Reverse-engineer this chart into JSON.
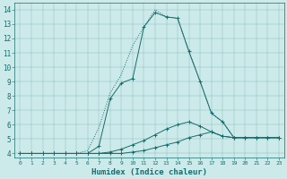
{
  "xlabel": "Humidex (Indice chaleur)",
  "ylabel": "",
  "bg_color": "#cceaea",
  "line_color": "#1a6b6b",
  "xlim": [
    -0.5,
    23.5
  ],
  "ylim": [
    3.7,
    14.5
  ],
  "xticks": [
    0,
    1,
    2,
    3,
    4,
    5,
    6,
    7,
    8,
    9,
    10,
    11,
    12,
    13,
    14,
    15,
    16,
    17,
    18,
    19,
    20,
    21,
    22,
    23
  ],
  "yticks": [
    4,
    5,
    6,
    7,
    8,
    9,
    10,
    11,
    12,
    13,
    14
  ],
  "lines": [
    {
      "x": [
        0,
        1,
        2,
        3,
        4,
        5,
        6,
        7,
        8,
        9,
        10,
        11,
        12,
        13,
        14,
        15,
        16,
        17,
        18,
        19,
        20,
        21,
        22,
        23
      ],
      "y": [
        4.0,
        4.0,
        4.0,
        4.0,
        4.0,
        4.0,
        4.0,
        4.0,
        4.0,
        4.0,
        4.1,
        4.2,
        4.4,
        4.6,
        4.8,
        5.1,
        5.3,
        5.5,
        5.2,
        5.1,
        5.1,
        5.1,
        5.1,
        5.1
      ],
      "marker": true,
      "dotted": false
    },
    {
      "x": [
        0,
        1,
        2,
        3,
        4,
        5,
        6,
        7,
        8,
        9,
        10,
        11,
        12,
        13,
        14,
        15,
        16,
        17,
        18,
        19,
        20,
        21,
        22,
        23
      ],
      "y": [
        4.0,
        4.0,
        4.0,
        4.0,
        4.0,
        4.0,
        4.0,
        4.0,
        4.1,
        4.3,
        4.6,
        4.9,
        5.3,
        5.7,
        6.0,
        6.2,
        5.9,
        5.5,
        5.2,
        5.1,
        5.1,
        5.1,
        5.1,
        5.1
      ],
      "marker": true,
      "dotted": false
    },
    {
      "x": [
        0,
        1,
        2,
        3,
        4,
        5,
        6,
        7,
        8,
        9,
        10,
        11,
        12,
        13,
        14,
        15,
        16,
        17,
        18,
        19,
        20,
        21,
        22,
        23
      ],
      "y": [
        4.0,
        4.0,
        4.0,
        4.0,
        4.0,
        4.0,
        4.0,
        4.5,
        7.8,
        8.9,
        9.2,
        12.8,
        13.8,
        13.5,
        13.4,
        11.1,
        9.0,
        6.8,
        6.2,
        5.1,
        5.1,
        5.1,
        5.1,
        5.1
      ],
      "marker": true,
      "dotted": false
    },
    {
      "x": [
        0,
        1,
        2,
        3,
        4,
        5,
        6,
        7,
        8,
        9,
        10,
        11,
        12,
        13,
        14,
        15,
        16,
        17,
        18,
        19,
        20,
        21,
        22,
        23
      ],
      "y": [
        4.0,
        4.0,
        4.0,
        4.0,
        4.0,
        4.0,
        4.2,
        5.8,
        8.2,
        9.5,
        11.5,
        12.8,
        14.0,
        13.5,
        13.4,
        11.1,
        9.0,
        6.8,
        6.2,
        5.1,
        5.1,
        5.1,
        5.1,
        5.1
      ],
      "marker": false,
      "dotted": true
    }
  ]
}
